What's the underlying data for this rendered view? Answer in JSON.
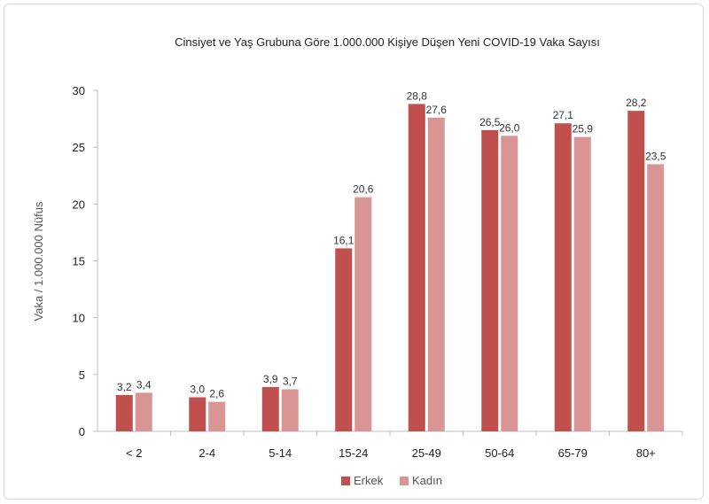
{
  "chart_data": {
    "type": "bar",
    "title": "Cinsiyet ve Yaş Grubuna Göre 1.000.000 Kişiye Düşen Yeni COVID-19 Vaka Sayısı",
    "xlabel": "",
    "ylabel": "Vaka / 1.000.000 Nüfus",
    "ylim": [
      0,
      30
    ],
    "yticks": [
      0,
      5,
      10,
      15,
      20,
      25,
      30
    ],
    "categories": [
      "< 2",
      "2-4",
      "5-14",
      "15-24",
      "25-49",
      "50-64",
      "65-79",
      "80+"
    ],
    "series": [
      {
        "name": "Erkek",
        "color": "#c0504d",
        "values": [
          3.2,
          3.0,
          3.9,
          16.1,
          28.8,
          26.5,
          27.1,
          28.2
        ],
        "labels": [
          "3,2",
          "3,0",
          "3,9",
          "16,1",
          "28,8",
          "26,5",
          "27,1",
          "28,2"
        ]
      },
      {
        "name": "Kadın",
        "color": "#d99594",
        "values": [
          3.4,
          2.6,
          3.7,
          20.6,
          27.6,
          26.0,
          25.9,
          23.5
        ],
        "labels": [
          "3,4",
          "2,6",
          "3,7",
          "20,6",
          "27,6",
          "26,0",
          "25,9",
          "23,5"
        ]
      }
    ],
    "grid": false,
    "legend_position": "bottom"
  }
}
